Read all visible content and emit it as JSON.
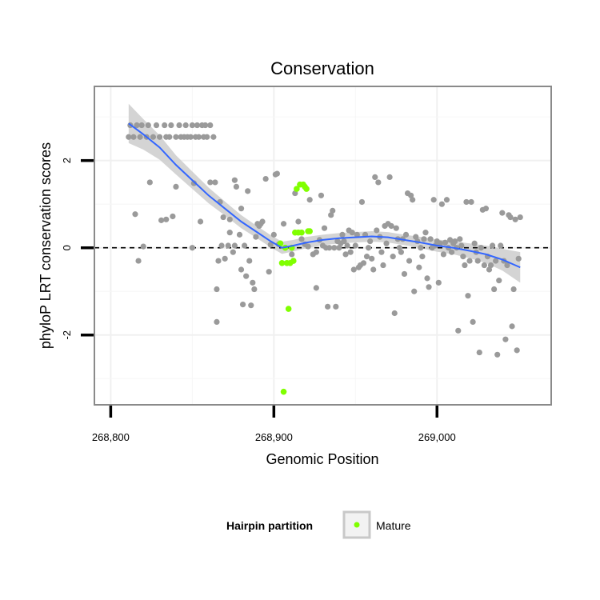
{
  "chart_data": {
    "type": "scatter",
    "title": "Conservation",
    "xlabel": "Genomic Position",
    "ylabel": "phyloP LRT conservation scores",
    "xlim": [
      268790,
      269070
    ],
    "ylim": [
      -3.6,
      3.7
    ],
    "x_ticks": [
      268800,
      268900,
      269000
    ],
    "x_tick_labels": [
      "268,800",
      "268,900",
      "269,000"
    ],
    "y_ticks": [
      -2,
      0,
      2
    ],
    "y_tick_labels": [
      "-2",
      "0",
      "2"
    ],
    "grid": true,
    "reference_line": {
      "y": 0,
      "style": "dashed"
    },
    "legend": {
      "title": "Hairpin partition",
      "position": "bottom",
      "entries": [
        {
          "label": "Mature",
          "color": "#80ff00"
        }
      ]
    },
    "colors": {
      "other": "#9a9a9a",
      "mature": "#80ff00",
      "smooth": "#3366ff",
      "ribbon": "#cccccc"
    },
    "series": [
      {
        "points": [
          [
            268811,
            2.54
          ],
          [
            268812,
            2.81
          ],
          [
            268814,
            2.54
          ],
          [
            268815,
            0.77
          ],
          [
            268816,
            2.81
          ],
          [
            268817,
            -0.3
          ],
          [
            268818,
            2.54
          ],
          [
            268819,
            2.81
          ],
          [
            268820,
            0.03
          ],
          [
            268822,
            2.54
          ],
          [
            268823,
            2.81
          ],
          [
            268824,
            1.5
          ],
          [
            268826,
            2.54
          ],
          [
            268828,
            2.81
          ],
          [
            268830,
            2.54
          ],
          [
            268831,
            0.63
          ],
          [
            268833,
            2.81
          ],
          [
            268834,
            2.54
          ],
          [
            268834,
            0.65
          ],
          [
            268836,
            2.54
          ],
          [
            268837,
            2.81
          ],
          [
            268838,
            0.72
          ],
          [
            268840,
            2.54
          ],
          [
            268840,
            1.4
          ],
          [
            268842,
            2.81
          ],
          [
            268843,
            2.54
          ],
          [
            268845,
            2.54
          ],
          [
            268846,
            2.81
          ],
          [
            268847,
            2.54
          ],
          [
            268849,
            2.54
          ],
          [
            268850,
            2.81
          ],
          [
            268850,
            0.0
          ],
          [
            268851,
            1.48
          ],
          [
            268852,
            2.54
          ],
          [
            268853,
            2.81
          ],
          [
            268854,
            2.54
          ],
          [
            268855,
            0.6
          ],
          [
            268856,
            2.81
          ],
          [
            268857,
            2.54
          ],
          [
            268858,
            2.81
          ],
          [
            268859,
            2.54
          ],
          [
            268861,
            1.5
          ],
          [
            268861,
            2.81
          ],
          [
            268863,
            2.54
          ],
          [
            268864,
            1.5
          ],
          [
            268865,
            -0.95
          ],
          [
            268865,
            -1.7
          ],
          [
            268866,
            -0.3
          ],
          [
            268867,
            1.05
          ],
          [
            268868,
            0.05
          ],
          [
            268869,
            0.7
          ],
          [
            268870,
            -0.25
          ],
          [
            268872,
            0.05
          ],
          [
            268873,
            0.35
          ],
          [
            268873,
            0.65
          ],
          [
            268875,
            -0.1
          ],
          [
            268876,
            1.55
          ],
          [
            268876,
            0.05
          ],
          [
            268877,
            1.4
          ],
          [
            268879,
            0.3
          ],
          [
            268880,
            0.9
          ],
          [
            268880,
            -0.5
          ],
          [
            268881,
            -1.3
          ],
          [
            268882,
            0.05
          ],
          [
            268883,
            -0.65
          ],
          [
            268884,
            1.3
          ],
          [
            268885,
            -0.3
          ],
          [
            268886,
            -1.32
          ],
          [
            268887,
            -0.8
          ],
          [
            268888,
            -0.95
          ],
          [
            268889,
            0.25
          ],
          [
            268890,
            0.55
          ],
          [
            268891,
            0.5
          ],
          [
            268892,
            0.55
          ],
          [
            268893,
            0.6
          ],
          [
            268895,
            1.58
          ],
          [
            268897,
            -0.55
          ],
          [
            268898,
            0.07
          ],
          [
            268900,
            0.3
          ],
          [
            268901,
            1.68
          ],
          [
            268902,
            1.7
          ],
          [
            268903,
            0.08
          ],
          [
            268906,
            0.55
          ],
          [
            268911,
            -0.15
          ],
          [
            268913,
            1.25
          ],
          [
            268915,
            0.6
          ],
          [
            268917,
            0.2
          ],
          [
            268919,
            0.08
          ],
          [
            268921,
            0.03
          ],
          [
            268922,
            1.1
          ],
          [
            268924,
            -0.15
          ],
          [
            268926,
            -0.1
          ],
          [
            268926,
            -0.92
          ],
          [
            268928,
            0.18
          ],
          [
            268929,
            1.2
          ],
          [
            268930,
            0.05
          ],
          [
            268931,
            0.45
          ],
          [
            268932,
            0.0
          ],
          [
            268933,
            -1.35
          ],
          [
            268934,
            0.0
          ],
          [
            268935,
            0.75
          ],
          [
            268936,
            0.85
          ],
          [
            268937,
            0.0
          ],
          [
            268938,
            -1.35
          ],
          [
            268939,
            0.15
          ],
          [
            268940,
            0.0
          ],
          [
            268941,
            0.1
          ],
          [
            268942,
            0.3
          ],
          [
            268943,
            0.15
          ],
          [
            268944,
            -0.15
          ],
          [
            268945,
            0.05
          ],
          [
            268946,
            0.4
          ],
          [
            268947,
            -0.1
          ],
          [
            268948,
            0.35
          ],
          [
            268949,
            -0.5
          ],
          [
            268950,
            0.05
          ],
          [
            268951,
            0.3
          ],
          [
            268952,
            -0.45
          ],
          [
            268953,
            -0.4
          ],
          [
            268954,
            1.05
          ],
          [
            268955,
            -0.35
          ],
          [
            268956,
            0.3
          ],
          [
            268957,
            -0.2
          ],
          [
            268958,
            0.0
          ],
          [
            268959,
            0.15
          ],
          [
            268960,
            -0.25
          ],
          [
            268961,
            -0.5
          ],
          [
            268962,
            1.62
          ],
          [
            268963,
            0.4
          ],
          [
            268964,
            1.5
          ],
          [
            268965,
            0.25
          ],
          [
            268966,
            -0.1
          ],
          [
            268967,
            -0.4
          ],
          [
            268968,
            0.5
          ],
          [
            268969,
            0.1
          ],
          [
            268970,
            0.55
          ],
          [
            268971,
            1.62
          ],
          [
            268972,
            0.5
          ],
          [
            268973,
            -0.2
          ],
          [
            268974,
            -1.5
          ],
          [
            268975,
            0.45
          ],
          [
            268976,
            0.2
          ],
          [
            268977,
            0.0
          ],
          [
            268978,
            -0.1
          ],
          [
            268979,
            0.2
          ],
          [
            268980,
            -0.6
          ],
          [
            268981,
            0.3
          ],
          [
            268982,
            1.25
          ],
          [
            268983,
            -0.3
          ],
          [
            268984,
            1.2
          ],
          [
            268985,
            1.1
          ],
          [
            268986,
            -1.0
          ],
          [
            268987,
            0.25
          ],
          [
            268988,
            0.15
          ],
          [
            268989,
            -0.45
          ],
          [
            268990,
            0.0
          ],
          [
            268991,
            -0.2
          ],
          [
            268992,
            0.2
          ],
          [
            268993,
            0.35
          ],
          [
            268994,
            -0.7
          ],
          [
            268995,
            -0.9
          ],
          [
            268996,
            0.2
          ],
          [
            268997,
            0.0
          ],
          [
            268998,
            1.1
          ],
          [
            268999,
            0.05
          ],
          [
            269000,
            0.15
          ],
          [
            269001,
            -0.8
          ],
          [
            269002,
            0.1
          ],
          [
            269003,
            1.0
          ],
          [
            269004,
            -0.15
          ],
          [
            269005,
            0.12
          ],
          [
            269006,
            1.1
          ],
          [
            269007,
            0.0
          ],
          [
            269008,
            0.18
          ],
          [
            269009,
            -0.1
          ],
          [
            269010,
            0.1
          ],
          [
            269011,
            0.15
          ],
          [
            269012,
            0.0
          ],
          [
            269013,
            -1.9
          ],
          [
            269014,
            0.2
          ],
          [
            269015,
            0.05
          ],
          [
            269016,
            -0.2
          ],
          [
            269017,
            -0.4
          ],
          [
            269018,
            1.05
          ],
          [
            269019,
            -1.1
          ],
          [
            269020,
            -0.3
          ],
          [
            269021,
            1.05
          ],
          [
            269022,
            -1.7
          ],
          [
            269023,
            0.1
          ],
          [
            269024,
            -0.1
          ],
          [
            269025,
            -0.3
          ],
          [
            269026,
            -2.4
          ],
          [
            269027,
            0.0
          ],
          [
            269028,
            0.87
          ],
          [
            269029,
            -0.4
          ],
          [
            269030,
            0.9
          ],
          [
            269031,
            -0.2
          ],
          [
            269032,
            -0.5
          ],
          [
            269033,
            -0.4
          ],
          [
            269034,
            0.05
          ],
          [
            269035,
            -0.95
          ],
          [
            269036,
            -0.3
          ],
          [
            269037,
            -2.45
          ],
          [
            269038,
            -0.75
          ],
          [
            269039,
            0.05
          ],
          [
            269040,
            0.8
          ],
          [
            269041,
            -0.3
          ],
          [
            269042,
            -2.1
          ],
          [
            269043,
            -0.4
          ],
          [
            269044,
            0.75
          ],
          [
            269045,
            0.7
          ],
          [
            269046,
            -1.8
          ],
          [
            269047,
            -0.95
          ],
          [
            269048,
            0.65
          ],
          [
            269049,
            -2.35
          ],
          [
            269050,
            -0.25
          ],
          [
            269051,
            0.7
          ]
        ]
      },
      {
        "name": "Mature",
        "points": [
          [
            268904,
            0.1
          ],
          [
            268905,
            -0.35
          ],
          [
            268906,
            -3.3
          ],
          [
            268907,
            0.0
          ],
          [
            268908,
            -0.35
          ],
          [
            268909,
            -1.4
          ],
          [
            268910,
            -0.35
          ],
          [
            268911,
            0.0
          ],
          [
            268912,
            -0.3
          ],
          [
            268913,
            0.35
          ],
          [
            268914,
            1.35
          ],
          [
            268915,
            0.35
          ],
          [
            268916,
            1.45
          ],
          [
            268917,
            0.35
          ],
          [
            268918,
            1.45
          ],
          [
            268919,
            1.4
          ],
          [
            268920,
            1.35
          ],
          [
            268921,
            0.38
          ],
          [
            268922,
            0.38
          ]
        ]
      }
    ],
    "smooth": {
      "x": [
        268811,
        268820,
        268830,
        268840,
        268850,
        268860,
        268870,
        268880,
        268890,
        268898,
        268905,
        268912,
        268920,
        268930,
        268940,
        268950,
        268960,
        268970,
        268980,
        268990,
        269000,
        269010,
        269020,
        269030,
        269040,
        269051
      ],
      "y": [
        2.85,
        2.6,
        2.3,
        1.9,
        1.55,
        1.2,
        0.9,
        0.6,
        0.35,
        0.15,
        0.0,
        0.05,
        0.12,
        0.18,
        0.22,
        0.24,
        0.26,
        0.24,
        0.18,
        0.12,
        0.05,
        0.0,
        -0.07,
        -0.15,
        -0.27,
        -0.45
      ],
      "se": [
        0.45,
        0.35,
        0.28,
        0.22,
        0.2,
        0.18,
        0.16,
        0.15,
        0.14,
        0.14,
        0.14,
        0.13,
        0.13,
        0.12,
        0.12,
        0.12,
        0.12,
        0.12,
        0.12,
        0.13,
        0.14,
        0.15,
        0.17,
        0.2,
        0.25,
        0.35
      ]
    }
  }
}
